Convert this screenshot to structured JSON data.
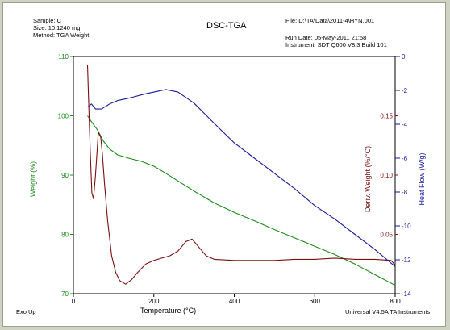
{
  "header": {
    "sample": "Sample: C",
    "size": "Size:  10.1240 mg",
    "method": "Method: TGA Weight",
    "title": "DSC-TGA",
    "file": "File: D:\\TA\\Data\\2011-4\\HYN.001",
    "run_date": "Run Date: 05-May-2011 21:58",
    "instrument": "Instrument: SDT Q600 V8.3 Build 101"
  },
  "footer": {
    "exo": "Exo Up",
    "software": "Universal V4.5A TA Instruments"
  },
  "colors": {
    "weight": "#1a8a1a",
    "deriv": "#7a1010",
    "heatflow": "#1a1a9a",
    "axis": "#000000"
  },
  "chart_data": {
    "type": "line",
    "title": "DSC-TGA",
    "xlabel": "Temperature (°C)",
    "xlim": [
      0,
      800
    ],
    "xticks": [
      0,
      200,
      400,
      600,
      800
    ],
    "axes": {
      "weight": {
        "label": "Weight (%)",
        "lim": [
          70,
          110
        ],
        "ticks": [
          70,
          80,
          90,
          100,
          110
        ]
      },
      "deriv": {
        "label": "Deriv. Weight (%/°C)",
        "lim": [
          0.0,
          0.2
        ],
        "ticks": [
          0.05,
          0.1,
          0.15
        ]
      },
      "heatflow": {
        "label": "Heat Flow (W/g)",
        "lim": [
          -14,
          0
        ],
        "ticks": [
          0,
          -2,
          -4,
          -6,
          -8,
          -10,
          -12,
          -14
        ]
      }
    },
    "grid": false,
    "series": [
      {
        "key": "weight",
        "axis": "weight",
        "x": [
          35,
          45,
          60,
          75,
          90,
          110,
          140,
          170,
          200,
          230,
          260,
          300,
          350,
          400,
          450,
          500,
          550,
          600,
          650,
          700,
          750,
          800
        ],
        "y": [
          100,
          99.0,
          97.6,
          95.7,
          94.4,
          93.4,
          92.8,
          92.3,
          91.5,
          90.3,
          89.0,
          87.3,
          85.3,
          83.7,
          82.3,
          80.8,
          79.4,
          78.0,
          76.6,
          75.0,
          73.2,
          71.4
        ]
      },
      {
        "key": "deriv",
        "axis": "deriv",
        "x": [
          35,
          38,
          42,
          46,
          50,
          55,
          62,
          68,
          72,
          78,
          85,
          95,
          105,
          115,
          130,
          145,
          160,
          180,
          200,
          220,
          240,
          260,
          280,
          295,
          310,
          330,
          350,
          400,
          450,
          500,
          550,
          600,
          650,
          700,
          750,
          790,
          800
        ],
        "y": [
          0.193,
          0.16,
          0.12,
          0.085,
          0.08,
          0.1,
          0.136,
          0.132,
          0.118,
          0.09,
          0.062,
          0.032,
          0.018,
          0.011,
          0.008,
          0.012,
          0.018,
          0.025,
          0.028,
          0.03,
          0.032,
          0.036,
          0.044,
          0.046,
          0.04,
          0.032,
          0.029,
          0.028,
          0.028,
          0.028,
          0.029,
          0.029,
          0.03,
          0.029,
          0.029,
          0.028,
          0.024
        ]
      },
      {
        "key": "heatflow",
        "axis": "heatflow",
        "x": [
          35,
          45,
          55,
          70,
          90,
          110,
          140,
          180,
          230,
          260,
          300,
          350,
          400,
          450,
          500,
          550,
          600,
          650,
          700,
          750,
          790,
          800
        ],
        "y": [
          -3.0,
          -2.8,
          -3.1,
          -3.1,
          -2.8,
          -2.6,
          -2.45,
          -2.2,
          -1.95,
          -2.1,
          -2.75,
          -3.95,
          -5.1,
          -6.0,
          -6.9,
          -7.8,
          -8.8,
          -9.6,
          -10.5,
          -11.4,
          -12.2,
          -12.4
        ]
      }
    ]
  }
}
